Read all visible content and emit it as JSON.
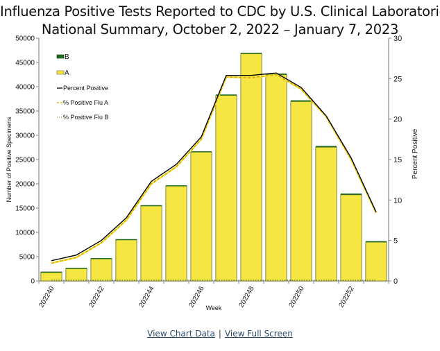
{
  "chart_data": {
    "type": "bar",
    "title": "Influenza Positive Tests Reported to CDC by U.S. Clinical Laboratories,",
    "subtitle": "National Summary, October 2, 2022 – January 7, 2023",
    "xlabel": "Week",
    "ylabel": "Number of Positive Specimens",
    "y2label": "Percent Positive",
    "ylim": [
      0,
      50000
    ],
    "y2lim": [
      0,
      30
    ],
    "yticks": [
      "0",
      "5000",
      "10000",
      "15000",
      "20000",
      "25000",
      "30000",
      "35000",
      "40000",
      "45000",
      "50000"
    ],
    "y2ticks": [
      "0",
      "5",
      "10",
      "15",
      "20",
      "25",
      "30"
    ],
    "categories": [
      "202240",
      "202241",
      "202242",
      "202243",
      "202244",
      "202245",
      "202246",
      "202247",
      "202248",
      "202249",
      "202250",
      "202251",
      "202252",
      "202301"
    ],
    "xtick_labels": [
      "202240",
      "202242",
      "202244",
      "202246",
      "202248",
      "202250",
      "202252"
    ],
    "grid": false,
    "legend_position": "top-left",
    "series": [
      {
        "name": "B",
        "kind": "stacked-bar",
        "color": "#1f6b1f",
        "values": [
          40,
          50,
          60,
          70,
          90,
          110,
          130,
          160,
          200,
          230,
          250,
          260,
          260,
          220
        ]
      },
      {
        "name": "A",
        "kind": "stacked-bar",
        "color": "#f5e642",
        "values": [
          1860,
          2650,
          4640,
          8530,
          15510,
          19590,
          26570,
          38240,
          46800,
          42470,
          36950,
          27540,
          17740,
          7980
        ]
      },
      {
        "name": "Percent Positive",
        "kind": "line",
        "axis": "right",
        "color": "#000000",
        "values": [
          2.5,
          3.2,
          5.0,
          7.8,
          12.3,
          14.4,
          17.8,
          25.4,
          25.4,
          25.7,
          23.9,
          20.4,
          15.2,
          8.5
        ]
      },
      {
        "name": "% Positive Flu A",
        "kind": "line-dashed",
        "axis": "right",
        "color": "#d9a400",
        "values": [
          2.2,
          2.9,
          4.7,
          7.5,
          12.0,
          14.1,
          17.5,
          25.2,
          25.1,
          25.5,
          23.7,
          20.3,
          15.0,
          8.4
        ]
      },
      {
        "name": "% Positive Flu B",
        "kind": "line-dotted",
        "axis": "right",
        "color": "#5a8a3a",
        "values": [
          0.1,
          0.1,
          0.1,
          0.1,
          0.1,
          0.1,
          0.1,
          0.1,
          0.1,
          0.1,
          0.1,
          0.1,
          0.1,
          0.1
        ]
      }
    ],
    "legend": [
      "B",
      "A",
      "Percent Positive",
      "% Positive Flu A",
      "% Positive Flu B"
    ]
  },
  "footer": {
    "link_chart_data": "View Chart Data",
    "separator": "|",
    "link_full_screen": "View Full Screen"
  }
}
